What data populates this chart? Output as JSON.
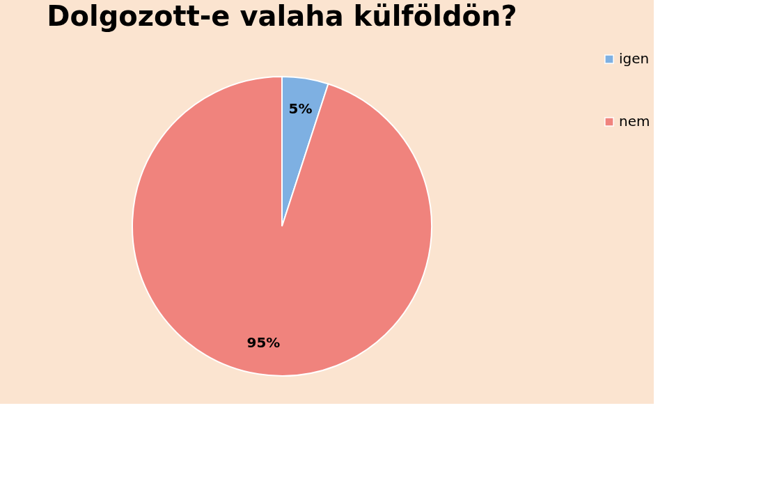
{
  "chart_data": {
    "type": "pie",
    "title": "Dolgozott-e valaha külföldön?",
    "categories": [
      "igen",
      "nem"
    ],
    "values": [
      5,
      95
    ],
    "colors": [
      "#7eb0e2",
      "#f0837d"
    ],
    "value_labels": [
      "5%",
      "95%"
    ],
    "legend": "right"
  }
}
